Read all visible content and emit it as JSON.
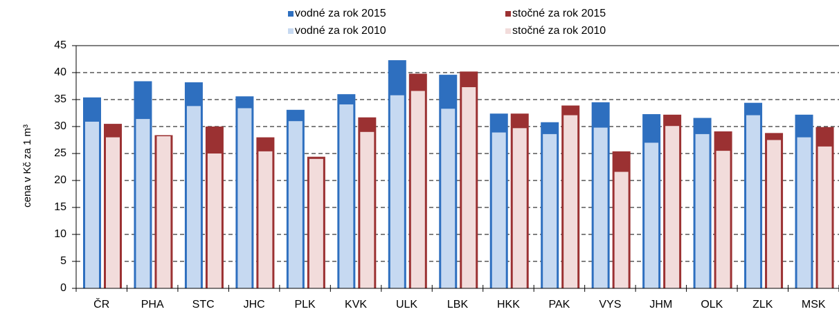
{
  "chart_data": {
    "type": "bar",
    "y_label": "cena v Kč za 1 m³",
    "categories": [
      "ČR",
      "PHA",
      "STC",
      "JHC",
      "PLK",
      "KVK",
      "ULK",
      "LBK",
      "HKK",
      "PAK",
      "VYS",
      "JHM",
      "OLK",
      "ZLK",
      "MSK"
    ],
    "series": [
      {
        "name": "vodné za rok 2015",
        "color": "#2e6fbf",
        "values": [
          35.4,
          38.4,
          38.2,
          35.6,
          33.1,
          36.0,
          42.3,
          39.6,
          32.4,
          30.8,
          34.5,
          32.3,
          31.6,
          34.4,
          32.2
        ]
      },
      {
        "name": "vodné za rok 2010",
        "color": "#c6d9f1",
        "values": [
          30.9,
          31.4,
          33.8,
          33.4,
          31.0,
          34.1,
          35.8,
          33.3,
          28.9,
          28.6,
          29.8,
          27.0,
          28.6,
          32.1,
          28.0
        ]
      },
      {
        "name": "stočné za rok 2015",
        "color": "#9b3132",
        "values": [
          30.5,
          28.4,
          30.0,
          28.0,
          24.4,
          31.7,
          39.8,
          40.2,
          32.4,
          33.9,
          25.4,
          32.2,
          29.1,
          28.8,
          29.9
        ]
      },
      {
        "name": "stočné za rok 2010",
        "color": "#f2dcdb",
        "values": [
          28.0,
          28.2,
          25.0,
          25.4,
          24.0,
          29.0,
          36.6,
          37.3,
          29.7,
          32.1,
          21.6,
          30.1,
          25.5,
          27.5,
          26.3
        ]
      }
    ],
    "ylim": [
      0,
      45
    ],
    "yticks": [
      0,
      5,
      10,
      15,
      20,
      25,
      30,
      35,
      40,
      45
    ],
    "grid": true
  }
}
